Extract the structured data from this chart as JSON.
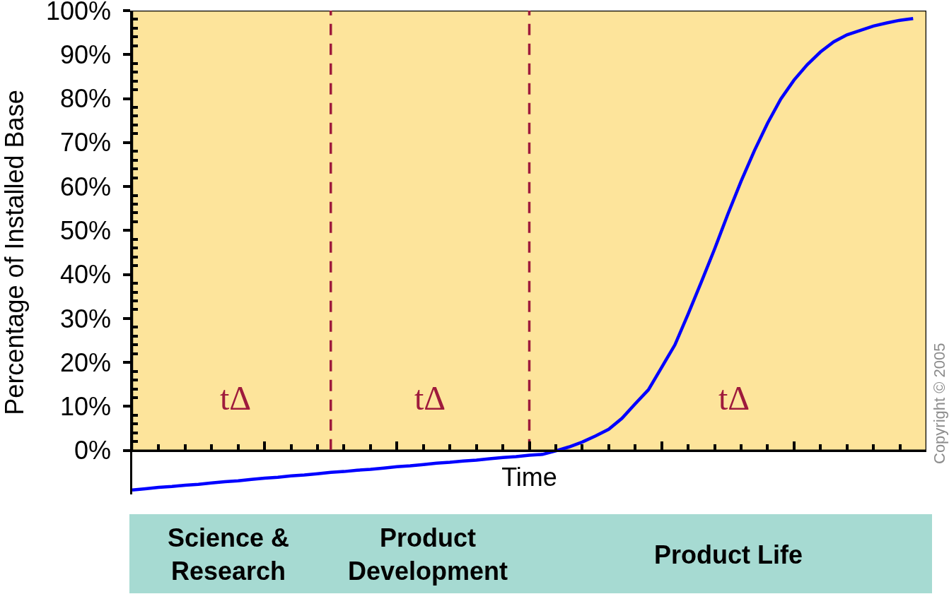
{
  "chart_data": {
    "type": "line",
    "xlabel": "Time",
    "ylabel": "Percentage of Installed Base",
    "categories": [
      null,
      null,
      null,
      null,
      null,
      null,
      null,
      null,
      null,
      null,
      null,
      null,
      null,
      null,
      null,
      null,
      null,
      null,
      null,
      null,
      null,
      null,
      null,
      null,
      null,
      null,
      null,
      null,
      null,
      null,
      null,
      null,
      null,
      null,
      null,
      null,
      null,
      null,
      null,
      null,
      null,
      null,
      null,
      null,
      null,
      null,
      null,
      null,
      null,
      null,
      null,
      null,
      null,
      null,
      null,
      null,
      null,
      null,
      null,
      null,
      null
    ],
    "series": [
      {
        "color": "#0000ff",
        "values": [
          -9.0,
          -8.7,
          -8.4,
          -8.2,
          -7.9,
          -7.7,
          -7.4,
          -7.1,
          -6.9,
          -6.6,
          -6.3,
          -6.1,
          -5.8,
          -5.6,
          -5.3,
          -5.0,
          -4.8,
          -4.5,
          -4.3,
          -4.0,
          -3.7,
          -3.5,
          -3.2,
          -2.9,
          -2.7,
          -2.4,
          -2.2,
          -1.9,
          -1.6,
          -1.4,
          -1.1,
          -0.9,
          -0.1,
          0.8,
          1.9,
          3.3,
          4.8,
          7.3,
          10.6,
          13.8,
          18.9,
          24.0,
          31.0,
          38.3,
          45.8,
          53.7,
          61.2,
          68.1,
          74.4,
          79.9,
          84.2,
          87.7,
          90.6,
          92.9,
          94.5,
          95.5,
          96.5,
          97.2,
          97.8,
          98.2,
          null
        ]
      }
    ],
    "ylim": [
      -10,
      100
    ],
    "yticks": [
      {
        "value": 0,
        "label": "0%"
      },
      {
        "value": 10,
        "label": "10%"
      },
      {
        "value": 20,
        "label": "20%"
      },
      {
        "value": 30,
        "label": "30%"
      },
      {
        "value": 40,
        "label": "40%"
      },
      {
        "value": 50,
        "label": "50%"
      },
      {
        "value": 60,
        "label": "60%"
      },
      {
        "value": 70,
        "label": "70%"
      },
      {
        "value": 80,
        "label": "80%"
      },
      {
        "value": 90,
        "label": "90%"
      },
      {
        "value": 100,
        "label": "100%"
      }
    ],
    "tick_labels": "y",
    "annotations": [
      "tΔ",
      "tΔ",
      "tΔ",
      "Science &\nResearch",
      "Product\nDevelopment",
      "Product Life",
      "Copyright © 2005"
    ],
    "grid": false,
    "marker": "none",
    "line_style": "solid"
  }
}
